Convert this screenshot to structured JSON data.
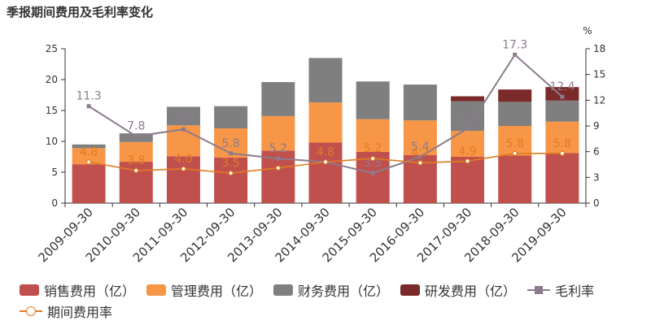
{
  "title": "季报期间费用及毛利率变化",
  "chart_data": {
    "type": "bar",
    "stacked": true,
    "title": "季报期间费用及毛利率变化",
    "categories": [
      "2009-09-30",
      "2010-09-30",
      "2011-09-30",
      "2012-09-30",
      "2013-09-30",
      "2014-09-30",
      "2015-09-30",
      "2016-09-30",
      "2017-09-30",
      "2018-09-30",
      "2019-09-30"
    ],
    "y_left": {
      "ylim": [
        0,
        25
      ],
      "ticks": [
        "0",
        "5",
        "10",
        "15",
        "20",
        "25"
      ]
    },
    "y_right": {
      "ylim": [
        0,
        18
      ],
      "ticks": [
        "0",
        "3",
        "6",
        "9",
        "12",
        "15",
        "18"
      ],
      "unit": "%"
    },
    "series": [
      {
        "name": "销售费用（亿）",
        "color": "#c0504d",
        "axis": "left",
        "kind": "bar",
        "values": [
          6.3,
          6.7,
          7.6,
          7.4,
          8.5,
          9.8,
          8.3,
          7.8,
          7.5,
          7.7,
          8.1
        ]
      },
      {
        "name": "管理费用（亿）",
        "color": "#f79646",
        "axis": "left",
        "kind": "bar",
        "values": [
          2.6,
          3.2,
          5.0,
          4.7,
          5.6,
          6.5,
          5.3,
          5.6,
          4.2,
          4.8,
          5.1
        ]
      },
      {
        "name": "财务费用（亿）",
        "color": "#7f7f7f",
        "axis": "left",
        "kind": "bar",
        "values": [
          0.6,
          1.4,
          3.0,
          3.6,
          5.5,
          7.2,
          6.1,
          5.8,
          4.8,
          3.9,
          3.4
        ]
      },
      {
        "name": "研发费用（亿）",
        "color": "#7b2a2a",
        "axis": "left",
        "kind": "bar",
        "values": [
          0,
          0,
          0,
          0,
          0,
          0,
          0,
          0,
          0.8,
          2.0,
          2.2
        ]
      },
      {
        "name": "毛利率",
        "color": "#8c7b8c",
        "axis": "right",
        "kind": "line",
        "marker": "square",
        "values": [
          11.3,
          7.8,
          8.6,
          5.8,
          5.2,
          4.8,
          3.5,
          5.4,
          8.7,
          17.3,
          12.4
        ],
        "labels": [
          "11.3",
          "7.8",
          "8.6",
          "5.8",
          "5.2",
          "",
          "3.5",
          "5.4",
          "8.7",
          "17.3",
          "12.4"
        ]
      },
      {
        "name": "期间费用率",
        "color": "#e07b22",
        "axis": "right",
        "kind": "line",
        "marker": "circle",
        "values": [
          4.8,
          3.8,
          4.0,
          3.5,
          4.1,
          4.8,
          5.2,
          4.7,
          4.9,
          5.8,
          5.8
        ],
        "labels": [
          "4.8",
          "3.8",
          "4.0",
          "3.5",
          "",
          "4.8",
          "5.2",
          "4.7",
          "4.9",
          "5.8",
          "5.8"
        ]
      }
    ],
    "grid": false,
    "legend_position": "bottom"
  }
}
